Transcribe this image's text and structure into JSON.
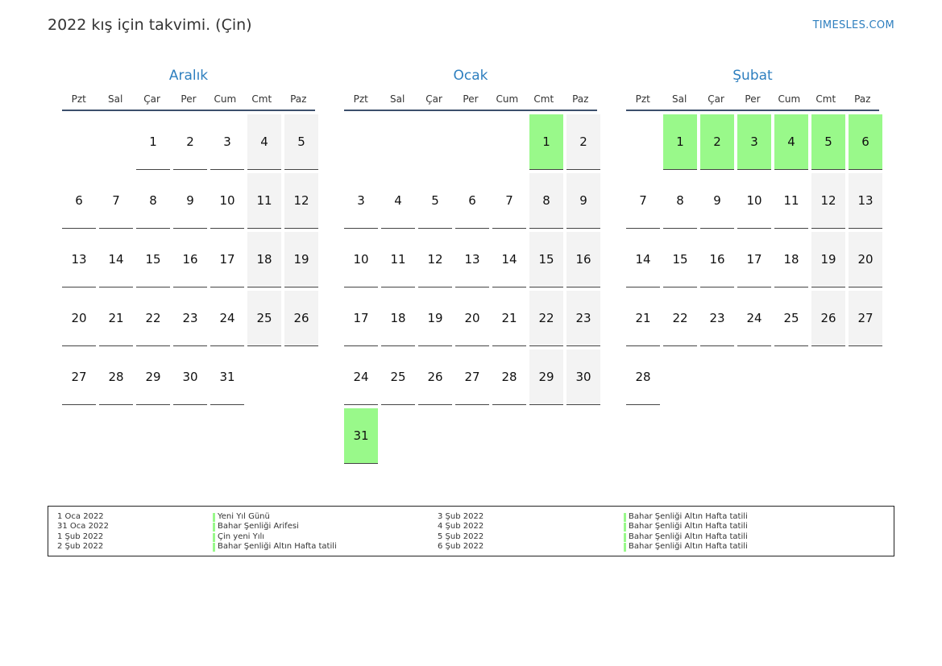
{
  "header": {
    "title": "2022 kış için takvimi. (Çin)",
    "site": "TIMESLES.COM"
  },
  "colors": {
    "accent": "#2e7fbf",
    "holiday": "#99f98a",
    "weekend": "#f3f3f3"
  },
  "weekdays": [
    "Pzt",
    "Sal",
    "Çar",
    "Per",
    "Cum",
    "Cmt",
    "Paz"
  ],
  "months": [
    {
      "name": "Aralık",
      "start_offset": 2,
      "days": 31,
      "holidays": []
    },
    {
      "name": "Ocak",
      "start_offset": 5,
      "days": 31,
      "holidays": [
        1,
        31
      ]
    },
    {
      "name": "Şubat",
      "start_offset": 1,
      "days": 28,
      "holidays": [
        1,
        2,
        3,
        4,
        5,
        6
      ]
    }
  ],
  "legend": [
    {
      "date": "1 Oca 2022",
      "name": "Yeni Yıl Günü"
    },
    {
      "date": "31 Oca 2022",
      "name": "Bahar Şenliği Arifesi"
    },
    {
      "date": "1 Şub 2022",
      "name": "Çin yeni Yılı"
    },
    {
      "date": "2 Şub 2022",
      "name": "Bahar Şenliği Altın Hafta tatili"
    },
    {
      "date": "3 Şub 2022",
      "name": "Bahar Şenliği Altın Hafta tatili"
    },
    {
      "date": "4 Şub 2022",
      "name": "Bahar Şenliği Altın Hafta tatili"
    },
    {
      "date": "5 Şub 2022",
      "name": "Bahar Şenliği Altın Hafta tatili"
    },
    {
      "date": "6 Şub 2022",
      "name": "Bahar Şenliği Altın Hafta tatili"
    }
  ]
}
